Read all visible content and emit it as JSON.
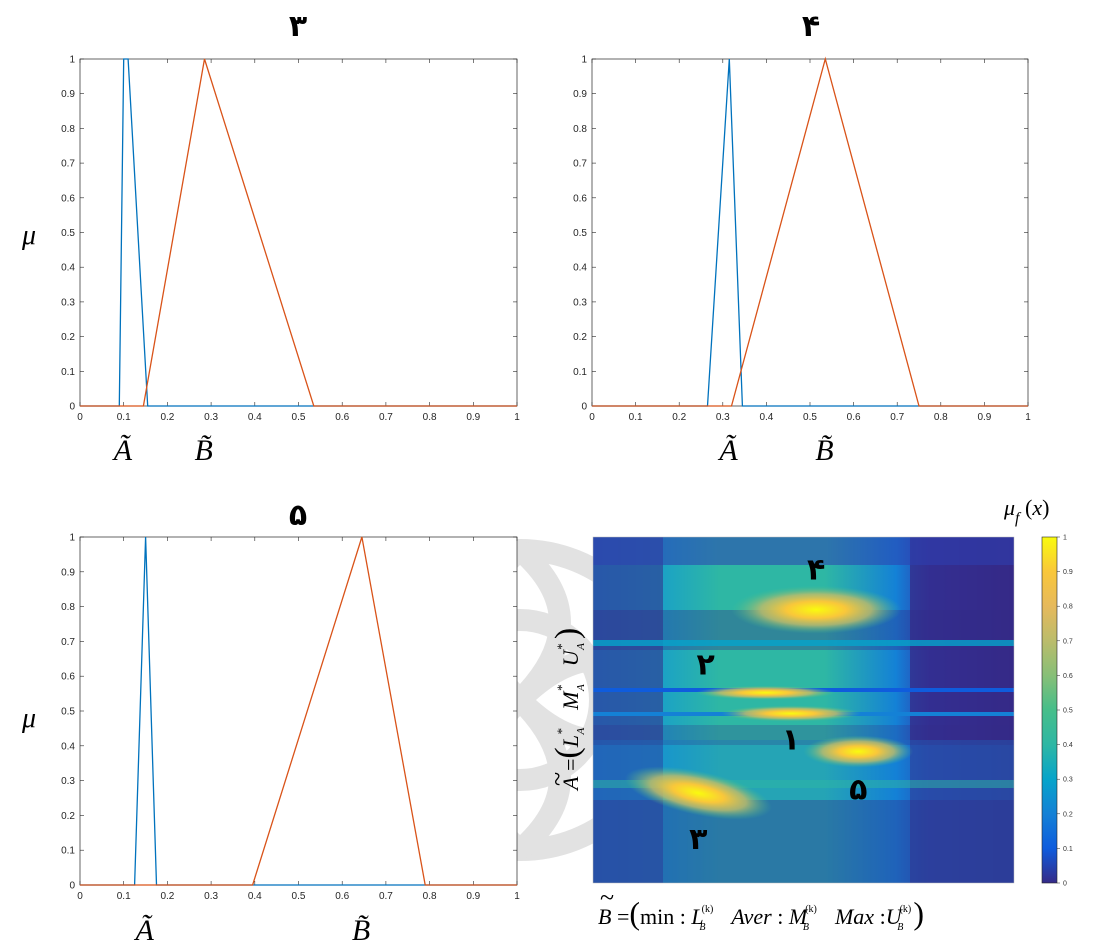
{
  "chart_data": [
    {
      "type": "line",
      "title": "۳",
      "ylabel": "μ",
      "xlim": [
        0,
        1
      ],
      "ylim": [
        0,
        1
      ],
      "xticks": [
        "0",
        "0.1",
        "0.2",
        "0.3",
        "0.4",
        "0.5",
        "0.6",
        "0.7",
        "0.8",
        "0.9",
        "1"
      ],
      "yticks": [
        "0",
        "0.1",
        "0.2",
        "0.3",
        "0.4",
        "0.5",
        "0.6",
        "0.7",
        "0.8",
        "0.9",
        "1"
      ],
      "series": [
        {
          "name": "Ã",
          "color": "#0072BD",
          "x": [
            0,
            0.09,
            0.1,
            0.11,
            0.155,
            1
          ],
          "y": [
            0,
            0,
            1,
            1,
            0,
            0
          ]
        },
        {
          "name": "B̃",
          "color": "#D95319",
          "x": [
            0,
            0.145,
            0.285,
            0.535,
            1
          ],
          "y": [
            0,
            0,
            1,
            0,
            0
          ]
        }
      ],
      "xlabels_below": [
        "Ã",
        "B̃"
      ]
    },
    {
      "type": "line",
      "title": "۴",
      "ylabel": "",
      "xlim": [
        0,
        1
      ],
      "ylim": [
        0,
        1
      ],
      "xticks": [
        "0",
        "0.1",
        "0.2",
        "0.3",
        "0.4",
        "0.5",
        "0.6",
        "0.7",
        "0.8",
        "0.9",
        "1"
      ],
      "yticks": [
        "0",
        "0.1",
        "0.2",
        "0.3",
        "0.4",
        "0.5",
        "0.6",
        "0.7",
        "0.8",
        "0.9",
        "1"
      ],
      "series": [
        {
          "name": "Ã",
          "color": "#0072BD",
          "x": [
            0,
            0.265,
            0.315,
            0.345,
            1
          ],
          "y": [
            0,
            0,
            1,
            0,
            0
          ]
        },
        {
          "name": "B̃",
          "color": "#D95319",
          "x": [
            0,
            0.32,
            0.535,
            0.75,
            1
          ],
          "y": [
            0,
            0,
            1,
            0,
            0
          ]
        }
      ],
      "xlabels_below": [
        "Ã",
        "B̃"
      ]
    },
    {
      "type": "line",
      "title": "۵",
      "ylabel": "μ",
      "xlim": [
        0,
        1
      ],
      "ylim": [
        0,
        1
      ],
      "xticks": [
        "0",
        "0.1",
        "0.2",
        "0.3",
        "0.4",
        "0.5",
        "0.6",
        "0.7",
        "0.8",
        "0.9",
        "1"
      ],
      "yticks": [
        "0",
        "0.1",
        "0.2",
        "0.3",
        "0.4",
        "0.5",
        "0.6",
        "0.7",
        "0.8",
        "0.9",
        "1"
      ],
      "series": [
        {
          "name": "Ã",
          "color": "#0072BD",
          "x": [
            0,
            0.125,
            0.15,
            0.175,
            1
          ],
          "y": [
            0,
            0,
            1,
            0,
            0
          ]
        },
        {
          "name": "B̃",
          "color": "#D95319",
          "x": [
            0,
            0.395,
            0.645,
            0.79,
            1
          ],
          "y": [
            0,
            0,
            1,
            0,
            0
          ]
        }
      ],
      "xlabels_below": [
        "Ã",
        "B̃"
      ]
    },
    {
      "type": "heatmap",
      "colorbar_label": "μ_f (x)",
      "colorbar_ticks": [
        "0",
        "0.1",
        "0.2",
        "0.3",
        "0.4",
        "0.5",
        "0.6",
        "0.7",
        "0.8",
        "0.9",
        "1"
      ],
      "colormap": "parula",
      "ylabel": "Ã = (L*_A   M*_A   U*_A)",
      "xlabel": "B̃ = (min : L_B^(k)   Aver : M_B^(k)   Max : U_B^(k))",
      "xlabel_parts": {
        "b": "B",
        "eq": "=",
        "min": "min",
        "colon": ":",
        "aver": "Aver",
        "max": "Max",
        "L": "L",
        "M": "M",
        "U": "U",
        "sub": "B",
        "sup": "(k)"
      },
      "ylabel_parts": {
        "a": "A",
        "eq": "=",
        "L": "L",
        "M": "M",
        "U": "U",
        "star": "*",
        "sub": "A"
      },
      "points": [
        {
          "label": "۱",
          "x": 0.47,
          "y": 0.49,
          "value": 1
        },
        {
          "label": "۲",
          "x": 0.41,
          "y": 0.55,
          "value": 1
        },
        {
          "label": "۳",
          "x": 0.25,
          "y": 0.26,
          "value": 1
        },
        {
          "label": "۴",
          "x": 0.53,
          "y": 0.79,
          "value": 1
        },
        {
          "label": "۵",
          "x": 0.63,
          "y": 0.38,
          "value": 1
        }
      ]
    }
  ],
  "colors": {
    "blue": "#0072BD",
    "orange": "#D95319",
    "axis": "#262626",
    "background": "#ffffff"
  }
}
